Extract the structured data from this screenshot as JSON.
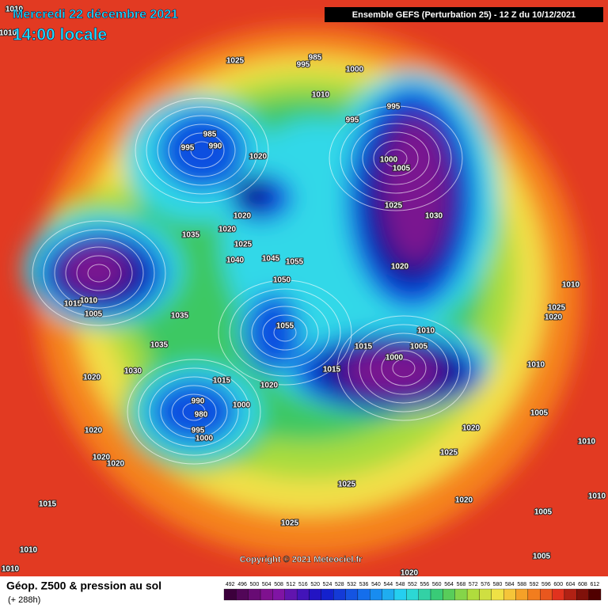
{
  "header": {
    "date": "Mercredi 22 décembre 2021",
    "time": "14:00 locale",
    "model": "Ensemble GEFS  (Perturbation 25)  -  12 Z du 10/12/2021"
  },
  "footer": {
    "title": "Géop. Z500 & pression au sol",
    "lead": "(+ 288h)",
    "copyright": "Copyright © 2021 Meteociel.fr"
  },
  "legend": {
    "levels": [
      492,
      496,
      500,
      504,
      508,
      512,
      516,
      520,
      524,
      528,
      532,
      536,
      540,
      544,
      548,
      552,
      556,
      560,
      564,
      568,
      572,
      576,
      580,
      584,
      588,
      592,
      596,
      600,
      604,
      608,
      612
    ]
  },
  "map": {
    "pressure_labels": [
      "1010",
      "1010",
      "1025",
      "985",
      "995",
      "1000",
      "1010",
      "995",
      "985",
      "990",
      "1020",
      "995",
      "995",
      "1000",
      "1005",
      "1025",
      "1030",
      "1020",
      "1035",
      "1020",
      "1025",
      "1045",
      "1055",
      "1040",
      "1050",
      "1020",
      "1010",
      "1015",
      "1010",
      "1005",
      "1035",
      "1055",
      "1025",
      "1020",
      "1010",
      "1015",
      "1005",
      "1035",
      "1000",
      "1015",
      "1010",
      "1030",
      "1020",
      "1015",
      "1020",
      "990",
      "980",
      "1000",
      "995",
      "1000",
      "1005",
      "1020",
      "1020",
      "1025",
      "1020",
      "1020",
      "1010",
      "1025",
      "1020",
      "1015",
      "1010",
      "1005",
      "1025",
      "1010",
      "1010",
      "1005",
      "1020"
    ]
  }
}
